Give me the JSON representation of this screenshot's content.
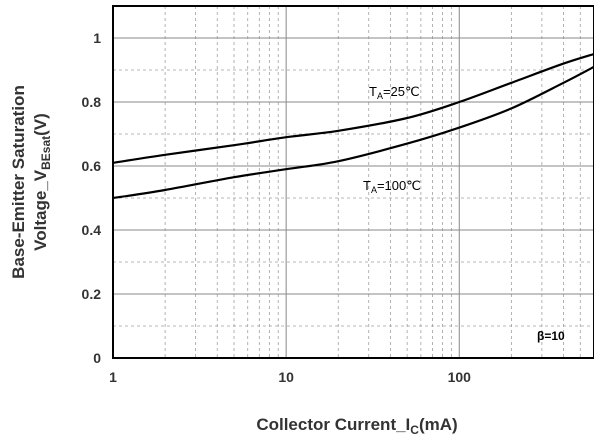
{
  "chart_data": {
    "type": "line",
    "xscale": "log",
    "xlim": [
      1,
      600
    ],
    "ylim": [
      0,
      1.1
    ],
    "xticks": [
      {
        "value": 1,
        "label": "1"
      },
      {
        "value": 10,
        "label": "10"
      },
      {
        "value": 100,
        "label": "100"
      }
    ],
    "yticks": [
      {
        "value": 0,
        "label": "0"
      },
      {
        "value": 0.2,
        "label": "0.2"
      },
      {
        "value": 0.4,
        "label": "0.4"
      },
      {
        "value": 0.6,
        "label": "0.6"
      },
      {
        "value": 0.8,
        "label": "0.8"
      },
      {
        "value": 1.0,
        "label": "1"
      }
    ],
    "xlabel": {
      "main": "Collector Current_I",
      "sub": "C",
      "unit": "(mA)"
    },
    "ylabel": {
      "line1": "Base-Emitter Saturation",
      "line2_main": "Voltage_V",
      "line2_sub": "BEsat",
      "line2_unit": "(V)"
    },
    "grid": true,
    "annotation": "β=10",
    "series": [
      {
        "name_main": "T",
        "name_sub": "A",
        "name_rest": "=25℃",
        "x": [
          1,
          2,
          5,
          10,
          20,
          50,
          100,
          200,
          400,
          600
        ],
        "y": [
          0.61,
          0.635,
          0.665,
          0.69,
          0.71,
          0.75,
          0.8,
          0.86,
          0.92,
          0.95
        ]
      },
      {
        "name_main": "T",
        "name_sub": "A",
        "name_rest": "=100℃",
        "x": [
          1,
          2,
          5,
          10,
          20,
          50,
          100,
          200,
          400,
          600
        ],
        "y": [
          0.5,
          0.525,
          0.565,
          0.59,
          0.615,
          0.67,
          0.72,
          0.78,
          0.86,
          0.91
        ]
      }
    ]
  }
}
